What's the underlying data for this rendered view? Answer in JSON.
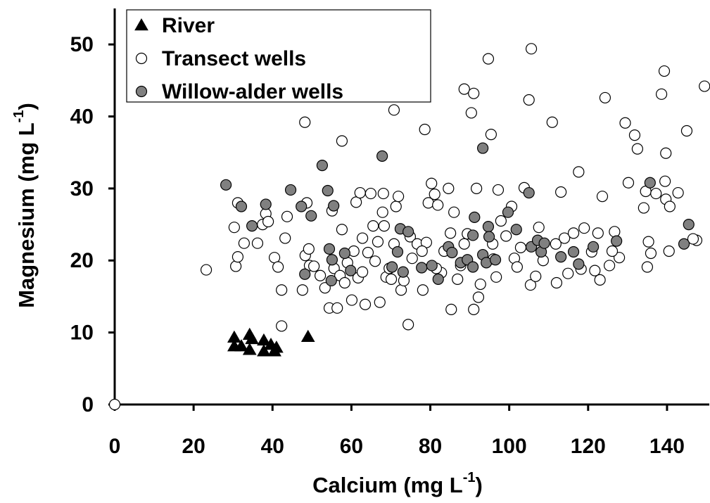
{
  "chart_data": {
    "type": "scatter",
    "xlabel": [
      "Calcium (mg L",
      "-1",
      ")"
    ],
    "ylabel": [
      "Magnesium (mg L",
      "-1",
      ")"
    ],
    "xlim": [
      0,
      150
    ],
    "xticks": [
      0,
      20,
      40,
      60,
      80,
      100,
      120,
      140
    ],
    "ylim": [
      0,
      55
    ],
    "yticks": [
      0,
      10,
      20,
      30,
      40,
      50
    ],
    "legend": "upper left",
    "series": [
      {
        "name": "River",
        "color": "#000000",
        "marker": "triangle",
        "x": [
          30.3,
          30.3,
          32.1,
          34.2,
          34.8,
          34.2,
          37.8,
          37.8,
          39.6,
          40.5,
          41.0,
          49.0
        ],
        "values": [
          9.3,
          8.1,
          8.1,
          9.7,
          9.1,
          7.6,
          8.9,
          7.4,
          8.3,
          7.4,
          7.9,
          9.4
        ]
      },
      {
        "name": "Transect wells",
        "color": "#ffffff",
        "marker": "circle",
        "x": [
          0,
          23.2,
          30.3,
          30.7,
          31.2,
          31.2,
          32.8,
          36.2,
          37.5,
          38.3,
          38.9,
          40.5,
          41.4,
          42.3,
          42.3,
          43.2,
          43.7,
          47.6,
          48.3,
          48.2,
          48.7,
          49.2,
          49.4,
          50.5,
          53.3,
          54.4,
          55.1,
          55.6,
          56.4,
          57.1,
          57.6,
          57.6,
          59.0,
          60.1,
          60.6,
          61.2,
          61.7,
          62.2,
          62.8,
          63.5,
          64.2,
          64.9,
          66.0,
          66.7,
          67.2,
          67.9,
          68.3,
          68.1,
          68.8,
          69.6,
          70.1,
          70.8,
          71.3,
          71.9,
          72.6,
          73.3,
          74.4,
          74.9,
          75.4,
          76.7,
          78.1,
          78.6,
          79.0,
          79.5,
          80.3,
          81.1,
          81.9,
          82.8,
          83.5,
          84.6,
          85.3,
          86.0,
          86.9,
          87.7,
          88.6,
          89.4,
          90.4,
          91.0,
          91.0,
          91.7,
          92.2,
          92.7,
          94.7,
          95.4,
          96.0,
          96.7,
          97.2,
          97.9,
          99.2,
          100.6,
          101.3,
          102.0,
          103.8,
          105.0,
          105.4,
          105.6,
          106.7,
          107.5,
          108.6,
          110.9,
          112.0,
          113.1,
          114.0,
          114.9,
          117.6,
          118.2,
          119.0,
          120.9,
          121.7,
          123.0,
          123.6,
          124.3,
          125.4,
          126.7,
          127.9,
          129.4,
          130.2,
          131.8,
          132.5,
          134.1,
          134.6,
          135.0,
          135.3,
          135.9,
          137.2,
          138.6,
          139.3,
          139.5,
          139.7,
          139.7,
          140.5,
          140.7,
          142.8,
          145.0,
          147.5,
          149.5,
          146.6,
          70.8,
          77.9,
          81.5,
          85.1,
          88.6,
          95.8,
          102.9,
          111.8,
          116.3,
          122.5,
          126.1,
          65.5,
          62.8,
          58.3,
          52.1
        ],
        "values": [
          0,
          18.7,
          24.6,
          19.2,
          20.5,
          28.0,
          22.4,
          22.4,
          25.0,
          26.5,
          25.4,
          20.4,
          19.1,
          15.9,
          10.9,
          23.1,
          26.1,
          15.9,
          20.7,
          39.2,
          28.0,
          21.6,
          19.3,
          19.2,
          16.2,
          13.4,
          26.9,
          18.9,
          13.4,
          17.9,
          36.6,
          24.3,
          19.7,
          14.5,
          21.3,
          28.1,
          17.6,
          29.4,
          23.1,
          13.9,
          21.1,
          29.3,
          19.9,
          22.6,
          14.2,
          26.7,
          24.8,
          29.3,
          17.7,
          18.9,
          17.4,
          40.9,
          27.5,
          28.9,
          15.9,
          17.2,
          11.1,
          23.3,
          20.3,
          22.3,
          15.9,
          38.2,
          22.5,
          28.0,
          30.7,
          29.2,
          27.7,
          18.3,
          21.3,
          30.0,
          13.2,
          26.7,
          17.4,
          19.3,
          43.8,
          23.7,
          40.5,
          43.2,
          13.2,
          30.0,
          14.9,
          16.7,
          48.0,
          37.5,
          20.2,
          17.7,
          29.8,
          25.5,
          23.4,
          27.5,
          20.3,
          19.1,
          30.1,
          42.3,
          16.6,
          49.4,
          17.8,
          24.6,
          20.0,
          39.2,
          16.9,
          29.5,
          23.1,
          18.2,
          32.3,
          18.8,
          24.5,
          21.2,
          18.6,
          17.3,
          28.9,
          42.6,
          19.3,
          24.0,
          20.4,
          39.1,
          30.8,
          37.4,
          35.5,
          27.3,
          29.6,
          19.1,
          22.6,
          21.0,
          29.3,
          43.1,
          46.3,
          31.0,
          34.9,
          28.5,
          21.3,
          27.5,
          29.4,
          38.0,
          22.8,
          44.2,
          23.0,
          22.3,
          21.3,
          18.9,
          23.8,
          22.3,
          22.3,
          21.8,
          22.3,
          23.8,
          23.8,
          21.3,
          24.8,
          18.4,
          16.9,
          17.9
        ]
      },
      {
        "name": "Willow-alder wells",
        "color": "#808080",
        "marker": "circle",
        "x": [
          28.2,
          32.1,
          34.8,
          38.3,
          44.6,
          47.3,
          48.2,
          49.8,
          52.6,
          54.0,
          54.4,
          55.1,
          55.5,
          54.9,
          58.3,
          59.8,
          67.8,
          70.3,
          71.7,
          72.4,
          73.1,
          74.4,
          77.8,
          80.4,
          82.0,
          84.6,
          85.5,
          87.7,
          89.4,
          90.8,
          91.2,
          93.3,
          93.3,
          94.2,
          94.7,
          94.9,
          96.5,
          99.7,
          101.8,
          105.0,
          105.6,
          107.2,
          108.1,
          108.9,
          113.1,
          116.3,
          117.6,
          121.3,
          127.2,
          135.7,
          144.3,
          145.5,
          90.8
        ],
        "values": [
          30.5,
          27.5,
          24.8,
          27.8,
          29.8,
          27.5,
          18.1,
          26.2,
          33.2,
          29.7,
          21.6,
          20.1,
          27.6,
          17.2,
          21.0,
          18.6,
          34.5,
          19.1,
          21.2,
          24.4,
          18.4,
          24.0,
          19.0,
          19.3,
          17.4,
          21.9,
          21.1,
          19.7,
          20.1,
          23.5,
          26.0,
          35.6,
          20.8,
          19.7,
          24.7,
          23.3,
          20.1,
          26.7,
          24.3,
          29.4,
          21.9,
          22.8,
          21.2,
          22.4,
          20.5,
          21.2,
          19.5,
          21.9,
          22.7,
          30.8,
          22.3,
          25.0,
          19.1
        ]
      }
    ]
  }
}
